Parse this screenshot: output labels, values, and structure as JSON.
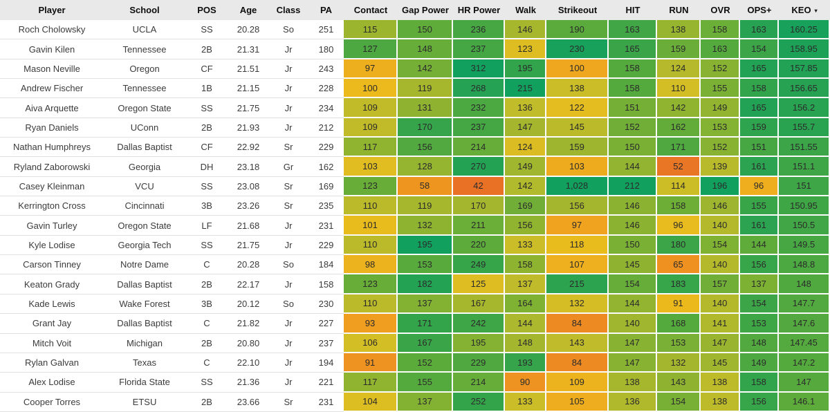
{
  "table": {
    "columns": [
      {
        "key": "player",
        "label": "Player"
      },
      {
        "key": "school",
        "label": "School"
      },
      {
        "key": "pos",
        "label": "POS"
      },
      {
        "key": "age",
        "label": "Age"
      },
      {
        "key": "class",
        "label": "Class"
      },
      {
        "key": "pa",
        "label": "PA"
      },
      {
        "key": "contact",
        "label": "Contact"
      },
      {
        "key": "gap_power",
        "label": "Gap Power"
      },
      {
        "key": "hr_power",
        "label": "HR Power"
      },
      {
        "key": "walk",
        "label": "Walk"
      },
      {
        "key": "strikeout",
        "label": "Strikeout"
      },
      {
        "key": "hit",
        "label": "HIT"
      },
      {
        "key": "run",
        "label": "RUN"
      },
      {
        "key": "ovr",
        "label": "OVR"
      },
      {
        "key": "ops_plus",
        "label": "OPS+"
      },
      {
        "key": "keo",
        "label": "KEO"
      }
    ],
    "sort": {
      "column": "KEO",
      "direction": "desc",
      "icon": "▾"
    },
    "rows": [
      {
        "player": "Roch Cholowsky",
        "school": "UCLA",
        "pos": "SS",
        "age": "20.28",
        "class": "So",
        "pa": "251",
        "contact": 115,
        "gap_power": 150,
        "hr_power": 236,
        "walk": 146,
        "strikeout": 190,
        "hit": 163,
        "run": 138,
        "ovr": 158,
        "ops_plus": 163,
        "keo": "160.25"
      },
      {
        "player": "Gavin Kilen",
        "school": "Tennessee",
        "pos": "2B",
        "age": "21.31",
        "class": "Jr",
        "pa": "180",
        "contact": 127,
        "gap_power": 148,
        "hr_power": 237,
        "walk": 123,
        "strikeout": 230,
        "hit": 165,
        "run": 159,
        "ovr": 163,
        "ops_plus": 154,
        "keo": "158.95"
      },
      {
        "player": "Mason Neville",
        "school": "Oregon",
        "pos": "CF",
        "age": "21.51",
        "class": "Jr",
        "pa": "243",
        "contact": 97,
        "gap_power": 142,
        "hr_power": 312,
        "walk": 195,
        "strikeout": 100,
        "hit": 158,
        "run": 124,
        "ovr": 152,
        "ops_plus": 165,
        "keo": "157.85"
      },
      {
        "player": "Andrew Fischer",
        "school": "Tennessee",
        "pos": "1B",
        "age": "21.15",
        "class": "Jr",
        "pa": "228",
        "contact": 100,
        "gap_power": 119,
        "hr_power": 268,
        "walk": 215,
        "strikeout": 138,
        "hit": 158,
        "run": 110,
        "ovr": 155,
        "ops_plus": 158,
        "keo": "156.65"
      },
      {
        "player": "Aiva Arquette",
        "school": "Oregon State",
        "pos": "SS",
        "age": "21.75",
        "class": "Jr",
        "pa": "234",
        "contact": 109,
        "gap_power": 131,
        "hr_power": 232,
        "walk": 136,
        "strikeout": 122,
        "hit": 151,
        "run": 142,
        "ovr": 149,
        "ops_plus": 165,
        "keo": "156.2"
      },
      {
        "player": "Ryan Daniels",
        "school": "UConn",
        "pos": "2B",
        "age": "21.93",
        "class": "Jr",
        "pa": "212",
        "contact": 109,
        "gap_power": 170,
        "hr_power": 237,
        "walk": 147,
        "strikeout": 145,
        "hit": 152,
        "run": 162,
        "ovr": 153,
        "ops_plus": 159,
        "keo": "155.7"
      },
      {
        "player": "Nathan Humphreys",
        "school": "Dallas Baptist",
        "pos": "CF",
        "age": "22.92",
        "class": "Sr",
        "pa": "229",
        "contact": 117,
        "gap_power": 156,
        "hr_power": 214,
        "walk": 124,
        "strikeout": 159,
        "hit": 150,
        "run": 171,
        "ovr": 152,
        "ops_plus": 151,
        "keo": "151.55"
      },
      {
        "player": "Ryland Zaborowski",
        "school": "Georgia",
        "pos": "DH",
        "age": "23.18",
        "class": "Gr",
        "pa": "162",
        "contact": 103,
        "gap_power": 128,
        "hr_power": 270,
        "walk": 149,
        "strikeout": 103,
        "hit": 144,
        "run": 52,
        "ovr": 139,
        "ops_plus": 161,
        "keo": "151.1"
      },
      {
        "player": "Casey Kleinman",
        "school": "VCU",
        "pos": "SS",
        "age": "23.08",
        "class": "Sr",
        "pa": "169",
        "contact": 123,
        "gap_power": 58,
        "hr_power": 42,
        "walk": 142,
        "strikeout": 1028,
        "hit": 212,
        "run": 114,
        "ovr": 196,
        "ops_plus": 96,
        "keo": "151"
      },
      {
        "player": "Kerrington Cross",
        "school": "Cincinnati",
        "pos": "3B",
        "age": "23.26",
        "class": "Sr",
        "pa": "235",
        "contact": 110,
        "gap_power": 119,
        "hr_power": 170,
        "walk": 169,
        "strikeout": 156,
        "hit": 146,
        "run": 158,
        "ovr": 146,
        "ops_plus": 155,
        "keo": "150.95"
      },
      {
        "player": "Gavin Turley",
        "school": "Oregon State",
        "pos": "LF",
        "age": "21.68",
        "class": "Jr",
        "pa": "231",
        "contact": 101,
        "gap_power": 132,
        "hr_power": 211,
        "walk": 156,
        "strikeout": 97,
        "hit": 146,
        "run": 96,
        "ovr": 140,
        "ops_plus": 161,
        "keo": "150.5"
      },
      {
        "player": "Kyle Lodise",
        "school": "Georgia Tech",
        "pos": "SS",
        "age": "21.75",
        "class": "Jr",
        "pa": "229",
        "contact": 110,
        "gap_power": 195,
        "hr_power": 220,
        "walk": 133,
        "strikeout": 118,
        "hit": 150,
        "run": 180,
        "ovr": 154,
        "ops_plus": 144,
        "keo": "149.5"
      },
      {
        "player": "Carson Tinney",
        "school": "Notre Dame",
        "pos": "C",
        "age": "20.28",
        "class": "So",
        "pa": "184",
        "contact": 98,
        "gap_power": 153,
        "hr_power": 249,
        "walk": 158,
        "strikeout": 107,
        "hit": 145,
        "run": 65,
        "ovr": 140,
        "ops_plus": 156,
        "keo": "148.8"
      },
      {
        "player": "Keaton Grady",
        "school": "Dallas Baptist",
        "pos": "2B",
        "age": "22.17",
        "class": "Jr",
        "pa": "158",
        "contact": 123,
        "gap_power": 182,
        "hr_power": 125,
        "walk": 137,
        "strikeout": 215,
        "hit": 154,
        "run": 183,
        "ovr": 157,
        "ops_plus": 137,
        "keo": "148"
      },
      {
        "player": "Kade Lewis",
        "school": "Wake Forest",
        "pos": "3B",
        "age": "20.12",
        "class": "So",
        "pa": "230",
        "contact": 110,
        "gap_power": 137,
        "hr_power": 167,
        "walk": 164,
        "strikeout": 132,
        "hit": 144,
        "run": 91,
        "ovr": 140,
        "ops_plus": 154,
        "keo": "147.7"
      },
      {
        "player": "Grant Jay",
        "school": "Dallas Baptist",
        "pos": "C",
        "age": "21.82",
        "class": "Jr",
        "pa": "227",
        "contact": 93,
        "gap_power": 171,
        "hr_power": 242,
        "walk": 144,
        "strikeout": 84,
        "hit": 140,
        "run": 168,
        "ovr": 141,
        "ops_plus": 153,
        "keo": "147.6"
      },
      {
        "player": "Mitch Voit",
        "school": "Michigan",
        "pos": "2B",
        "age": "20.80",
        "class": "Jr",
        "pa": "237",
        "contact": 106,
        "gap_power": 167,
        "hr_power": 195,
        "walk": 148,
        "strikeout": 143,
        "hit": 147,
        "run": 153,
        "ovr": 147,
        "ops_plus": 148,
        "keo": "147.45"
      },
      {
        "player": "Rylan Galvan",
        "school": "Texas",
        "pos": "C",
        "age": "22.10",
        "class": "Jr",
        "pa": "194",
        "contact": 91,
        "gap_power": 152,
        "hr_power": 229,
        "walk": 193,
        "strikeout": 84,
        "hit": 147,
        "run": 132,
        "ovr": 145,
        "ops_plus": 149,
        "keo": "147.2"
      },
      {
        "player": "Alex Lodise",
        "school": "Florida State",
        "pos": "SS",
        "age": "21.36",
        "class": "Jr",
        "pa": "221",
        "contact": 117,
        "gap_power": 155,
        "hr_power": 214,
        "walk": 90,
        "strikeout": 109,
        "hit": 138,
        "run": 143,
        "ovr": 138,
        "ops_plus": 158,
        "keo": "147"
      },
      {
        "player": "Cooper Torres",
        "school": "ETSU",
        "pos": "2B",
        "age": "23.66",
        "class": "Sr",
        "pa": "231",
        "contact": 104,
        "gap_power": 137,
        "hr_power": 252,
        "walk": 133,
        "strikeout": 105,
        "hit": 136,
        "run": 154,
        "ovr": 138,
        "ops_plus": 156,
        "keo": "146.1"
      }
    ]
  },
  "colors": {
    "header_bg": "#e9e9e9",
    "row_border": "#e0e0e0",
    "cell_gap": "#fbfbfb",
    "heatmap_scale": [
      [
        0.0,
        "#e86e25"
      ],
      [
        0.15,
        "#f0a01f"
      ],
      [
        0.28,
        "#ecbc1d"
      ],
      [
        0.4,
        "#cfbe27"
      ],
      [
        0.5,
        "#a9b72d"
      ],
      [
        0.62,
        "#85b232"
      ],
      [
        0.72,
        "#5cab3b"
      ],
      [
        0.82,
        "#3aa548"
      ],
      [
        0.92,
        "#23a254"
      ],
      [
        1.0,
        "#11a05e"
      ]
    ]
  }
}
